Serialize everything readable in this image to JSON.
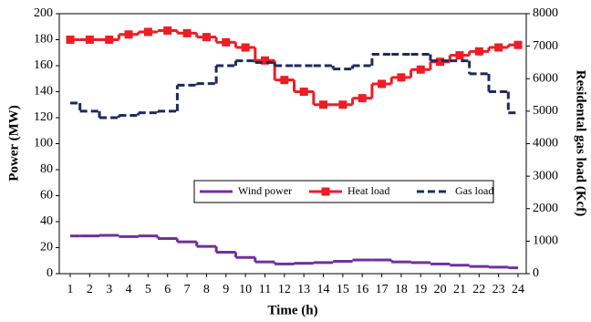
{
  "chart_data": {
    "type": "step-line",
    "x_label": "Time (h)",
    "y_label": "Power (MW)",
    "y2_label": "Residental gas load (Kcf)",
    "categories": [
      "1",
      "2",
      "3",
      "4",
      "5",
      "6",
      "7",
      "8",
      "9",
      "10",
      "11",
      "12",
      "13",
      "14",
      "15",
      "16",
      "17",
      "18",
      "19",
      "20",
      "21",
      "22",
      "23",
      "24"
    ],
    "ylim": [
      0,
      200
    ],
    "yticks": [
      0,
      20,
      40,
      60,
      80,
      100,
      120,
      140,
      160,
      180,
      200
    ],
    "y2lim": [
      0,
      8000
    ],
    "y2ticks": [
      0,
      1000,
      2000,
      3000,
      4000,
      5000,
      6000,
      7000,
      8000
    ],
    "legend": "center",
    "series": [
      {
        "name": "Wind power",
        "color": "#7030a0",
        "style": "solid",
        "marker": "none",
        "values": [
          29,
          29,
          29.5,
          28.5,
          29,
          27,
          24.5,
          21,
          16.5,
          12.5,
          9,
          7.5,
          8,
          8.5,
          9.5,
          10.5,
          10.5,
          9,
          8.5,
          7.5,
          6.5,
          5.5,
          5,
          4.5
        ]
      },
      {
        "name": "Heat load",
        "color": "#ee1c25",
        "style": "solid",
        "marker": "square",
        "values": [
          180,
          180,
          180,
          184,
          186,
          187,
          185,
          182,
          178,
          174,
          164,
          149,
          140,
          130,
          130,
          135,
          146,
          151,
          157,
          163,
          168,
          171,
          174,
          176
        ]
      },
      {
        "name": "Gas load",
        "color": "#1f2a5c",
        "style": "dashed",
        "marker": "none",
        "axis": "y2",
        "values": [
          5250,
          5000,
          4800,
          4870,
          4950,
          5000,
          5800,
          5850,
          6400,
          6550,
          6500,
          6400,
          6400,
          6400,
          6300,
          6400,
          6750,
          6750,
          6750,
          6550,
          6550,
          6150,
          5600,
          4950
        ]
      }
    ]
  }
}
